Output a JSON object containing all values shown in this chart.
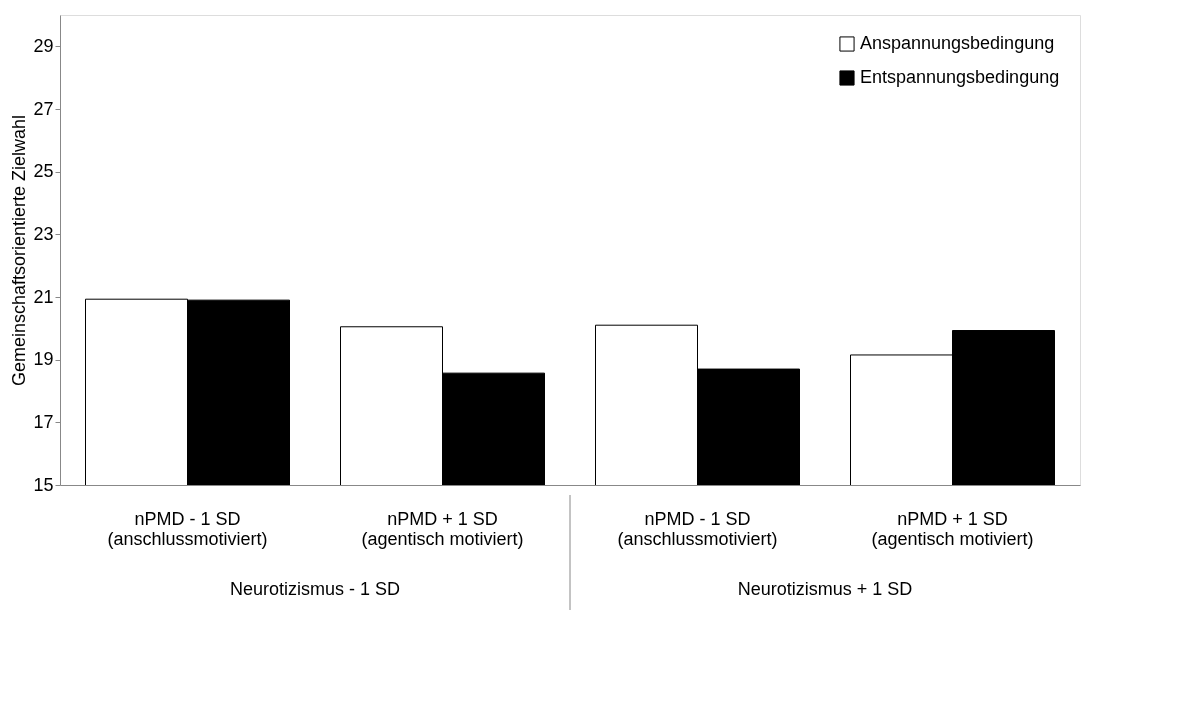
{
  "chart_data": {
    "type": "bar",
    "ylabel": "Gemeinschaftsorientierte Zielwahl",
    "categories": [
      "nPMD - 1 SD\n(anschlussmotiviert)",
      "nPMD + 1 SD\n(agentisch motiviert)",
      "nPMD - 1 SD\n(anschlussmotiviert)",
      "nPMD + 1 SD\n(agentisch motiviert)"
    ],
    "series": [
      {
        "name": "Anspannungsbedingung",
        "color": "#ffffff",
        "values": [
          20.93,
          20.05,
          20.1,
          19.15
        ]
      },
      {
        "name": "Entspannungsbedingung",
        "color": "#000000",
        "values": [
          20.9,
          18.57,
          18.7,
          19.93
        ]
      }
    ],
    "ylim": [
      15,
      30
    ],
    "yticks": [
      15,
      17,
      19,
      21,
      23,
      25,
      27,
      29
    ],
    "grid": false,
    "legend": "top right",
    "annotations": [
      "Neurotizismus - 1 SD",
      "Neurotizismus + 1 SD"
    ]
  }
}
